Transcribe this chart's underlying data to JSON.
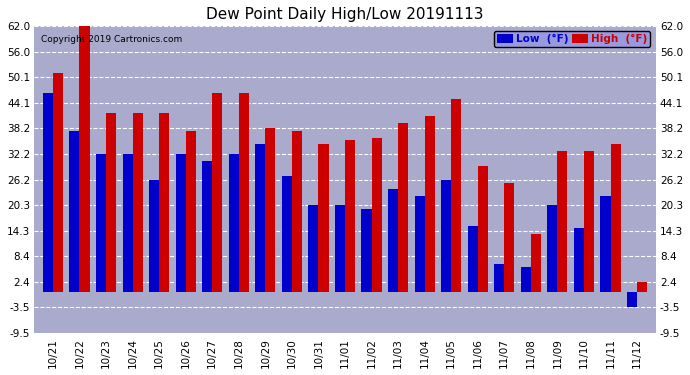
{
  "title": "Dew Point Daily High/Low 20191113",
  "copyright": "Copyright 2019 Cartronics.com",
  "categories": [
    "10/21",
    "10/22",
    "10/23",
    "10/24",
    "10/25",
    "10/26",
    "10/27",
    "10/28",
    "10/29",
    "10/30",
    "10/31",
    "11/01",
    "11/02",
    "11/03",
    "11/04",
    "11/05",
    "11/06",
    "11/07",
    "11/08",
    "11/09",
    "11/10",
    "11/11",
    "11/12"
  ],
  "high": [
    51.0,
    62.0,
    41.8,
    41.8,
    41.8,
    37.5,
    46.5,
    46.5,
    38.2,
    37.5,
    34.5,
    35.5,
    36.0,
    39.5,
    41.0,
    45.0,
    29.5,
    25.5,
    13.5,
    33.0,
    33.0,
    34.5,
    2.4
  ],
  "low": [
    46.5,
    37.5,
    32.2,
    32.2,
    26.2,
    32.2,
    30.5,
    32.2,
    34.5,
    27.0,
    20.3,
    20.3,
    19.5,
    24.0,
    22.5,
    26.2,
    15.5,
    6.5,
    5.8,
    20.3,
    15.0,
    22.5,
    -3.5
  ],
  "ylim": [
    -9.5,
    66.0
  ],
  "ymin": -9.5,
  "ymax": 62.0,
  "yticks": [
    -9.5,
    -3.5,
    2.4,
    8.4,
    14.3,
    20.3,
    26.2,
    32.2,
    38.2,
    44.1,
    50.1,
    56.0,
    62.0
  ],
  "ytick_labels": [
    "-9.5",
    "-3.5",
    "2.4",
    "8.4",
    "14.3",
    "20.3",
    "26.2",
    "32.2",
    "38.2",
    "44.1",
    "50.1",
    "56.0",
    "62.0"
  ],
  "low_color": "#0000cc",
  "high_color": "#cc0000",
  "bg_color": "#ffffff",
  "plot_bg_color": "#aaaacc",
  "grid_color": "#ffffff",
  "bar_width": 0.38,
  "legend_low_label": "Low  (°F)",
  "legend_high_label": "High  (°F)"
}
